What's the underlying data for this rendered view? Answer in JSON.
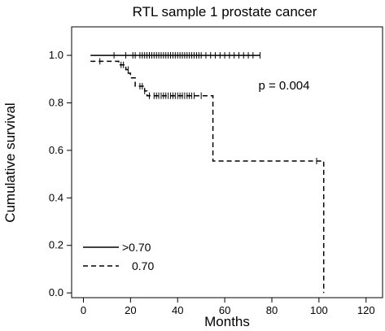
{
  "chart_data": {
    "type": "line",
    "subtype": "kaplan-meier",
    "title": "RTL sample 1 prostate cancer",
    "xlabel": "Months",
    "ylabel": "Cumulative  survival",
    "xlim": [
      -5,
      127
    ],
    "ylim": [
      -0.02,
      1.12
    ],
    "xticks": [
      0,
      20,
      40,
      60,
      80,
      100,
      120
    ],
    "yticks": [
      0.0,
      0.2,
      0.4,
      0.6,
      0.8,
      1.0
    ],
    "xtick_labels": [
      "0",
      "20",
      "40",
      "60",
      "80",
      "100",
      "120"
    ],
    "ytick_labels": [
      "0.0",
      "0.2",
      "0.4",
      "0.6",
      "0.8",
      "1.0"
    ],
    "grid": false,
    "legend_position": "bottom-left",
    "annotation": "p = 0.004",
    "series": [
      {
        "name": ">0.70",
        "style": "solid",
        "color": "#000000",
        "steps": [
          [
            3,
            1.0
          ],
          [
            75,
            1.0
          ]
        ],
        "censored": [
          [
            13,
            1.0
          ],
          [
            18,
            1.0
          ],
          [
            21,
            1.0
          ],
          [
            22,
            1.0
          ],
          [
            24,
            1.0
          ],
          [
            25,
            1.0
          ],
          [
            26,
            1.0
          ],
          [
            27,
            1.0
          ],
          [
            28,
            1.0
          ],
          [
            29,
            1.0
          ],
          [
            30,
            1.0
          ],
          [
            31,
            1.0
          ],
          [
            32,
            1.0
          ],
          [
            33,
            1.0
          ],
          [
            34,
            1.0
          ],
          [
            35,
            1.0
          ],
          [
            36,
            1.0
          ],
          [
            37,
            1.0
          ],
          [
            38,
            1.0
          ],
          [
            39,
            1.0
          ],
          [
            40,
            1.0
          ],
          [
            41,
            1.0
          ],
          [
            42,
            1.0
          ],
          [
            43,
            1.0
          ],
          [
            44,
            1.0
          ],
          [
            45,
            1.0
          ],
          [
            46,
            1.0
          ],
          [
            47,
            1.0
          ],
          [
            48,
            1.0
          ],
          [
            49,
            1.0
          ],
          [
            50,
            1.0
          ],
          [
            52,
            1.0
          ],
          [
            54,
            1.0
          ],
          [
            56,
            1.0
          ],
          [
            58,
            1.0
          ],
          [
            60,
            1.0
          ],
          [
            62,
            1.0
          ],
          [
            64,
            1.0
          ],
          [
            66,
            1.0
          ],
          [
            68,
            1.0
          ],
          [
            70,
            1.0
          ],
          [
            72,
            1.0
          ],
          [
            75,
            1.0
          ]
        ]
      },
      {
        "name": "0.70",
        "style": "dashed",
        "color": "#000000",
        "steps": [
          [
            3,
            0.975
          ],
          [
            15,
            0.975
          ],
          [
            15,
            0.96
          ],
          [
            18,
            0.96
          ],
          [
            18,
            0.94
          ],
          [
            19,
            0.94
          ],
          [
            19,
            0.925
          ],
          [
            20,
            0.925
          ],
          [
            20,
            0.905
          ],
          [
            22,
            0.905
          ],
          [
            22,
            0.87
          ],
          [
            26,
            0.87
          ],
          [
            26,
            0.85
          ],
          [
            27,
            0.85
          ],
          [
            27,
            0.83
          ],
          [
            55,
            0.83
          ],
          [
            55,
            0.555
          ],
          [
            102,
            0.555
          ],
          [
            102,
            0.0
          ]
        ],
        "censored": [
          [
            7,
            0.975
          ],
          [
            16,
            0.96
          ],
          [
            17,
            0.96
          ],
          [
            19,
            0.94
          ],
          [
            24,
            0.87
          ],
          [
            25,
            0.87
          ],
          [
            26,
            0.85
          ],
          [
            28,
            0.83
          ],
          [
            30,
            0.83
          ],
          [
            31,
            0.83
          ],
          [
            32,
            0.83
          ],
          [
            33,
            0.83
          ],
          [
            34,
            0.83
          ],
          [
            35,
            0.83
          ],
          [
            36,
            0.83
          ],
          [
            37,
            0.83
          ],
          [
            38,
            0.83
          ],
          [
            39,
            0.83
          ],
          [
            40,
            0.83
          ],
          [
            41,
            0.83
          ],
          [
            42,
            0.83
          ],
          [
            43,
            0.83
          ],
          [
            44,
            0.83
          ],
          [
            45,
            0.83
          ],
          [
            46,
            0.83
          ],
          [
            47,
            0.83
          ],
          [
            50,
            0.83
          ],
          [
            99,
            0.555
          ]
        ]
      }
    ]
  }
}
